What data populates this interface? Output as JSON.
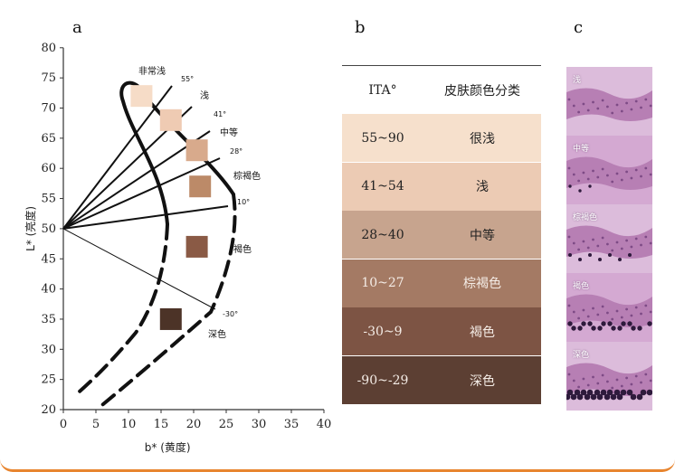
{
  "panels": {
    "a": "a",
    "b": "b",
    "c": "c"
  },
  "panel_a": {
    "ylabel": "L* (亮度)",
    "xlabel": "b* (黄度)",
    "y_ticks": [
      "80",
      "75",
      "70",
      "65",
      "60",
      "55",
      "50",
      "45",
      "40",
      "35",
      "30",
      "25",
      "20"
    ],
    "x_ticks": [
      "0",
      "5",
      "10",
      "15",
      "20",
      "25",
      "30",
      "35",
      "40"
    ],
    "angle_labels": [
      "55°",
      "41°",
      "28°",
      "10°",
      "-30°"
    ],
    "category_labels": [
      "非常浅",
      "浅",
      "中等",
      "棕褐色",
      "褐色",
      "深色"
    ],
    "swatches": [
      {
        "b": 12,
        "L": 72,
        "color": "#f6dcc7"
      },
      {
        "b": 16.5,
        "L": 68,
        "color": "#efcbb3"
      },
      {
        "b": 20.5,
        "L": 63,
        "color": "#d8aa8c"
      },
      {
        "b": 21,
        "L": 57,
        "color": "#bc8a68"
      },
      {
        "b": 20.5,
        "L": 47,
        "color": "#8a5a45"
      },
      {
        "b": 16.5,
        "L": 35,
        "color": "#4c3327"
      }
    ]
  },
  "table": {
    "header": {
      "ita": "ITA°",
      "class": "皮肤颜色分类"
    },
    "rows": [
      {
        "ita": "55~90",
        "class": "很浅",
        "color": "#f6e0cc"
      },
      {
        "ita": "41~54",
        "class": "浅",
        "color": "#eccbb4"
      },
      {
        "ita": "28~40",
        "class": "中等",
        "color": "#c7a48e"
      },
      {
        "ita": "10~27",
        "class": "棕褐色",
        "color": "#a47a64"
      },
      {
        "ita": "-30~9",
        "class": "褐色",
        "color": "#7d5444"
      },
      {
        "ita": "-90~-29",
        "class": "深色",
        "color": "#5c3f33"
      }
    ]
  },
  "histology": {
    "tiles": [
      {
        "label": "浅",
        "melanin": 0
      },
      {
        "label": "中等",
        "melanin": 0.1
      },
      {
        "label": "棕褐色",
        "melanin": 0.25
      },
      {
        "label": "褐色",
        "melanin": 0.6
      },
      {
        "label": "深色",
        "melanin": 0.9
      }
    ]
  }
}
